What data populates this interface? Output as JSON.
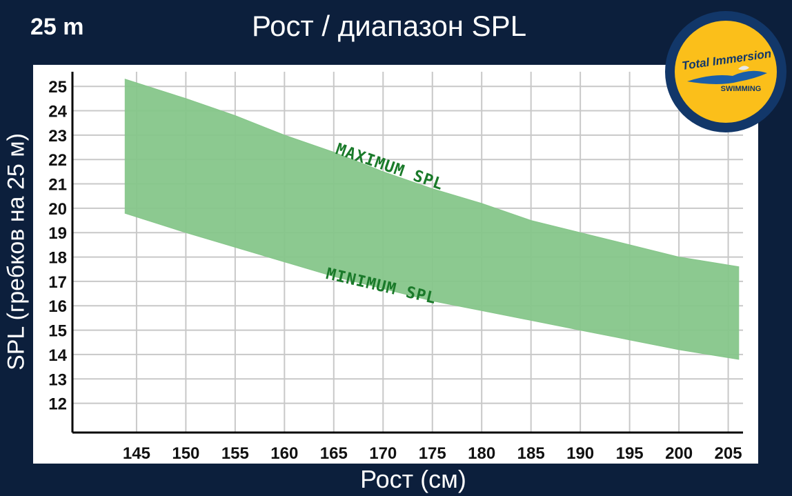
{
  "header": {
    "corner_label": "25 m",
    "title": "Рост / диапазон SPL"
  },
  "logo": {
    "line1": "Total Immersion",
    "line2": "SWIMMING",
    "ring_color": "#0d2a52",
    "fill_color": "#fbbf1a"
  },
  "chart_data": {
    "type": "area",
    "xlabel": "Рост (см)",
    "ylabel": "SPL (гребков на 25 м)",
    "xlim": [
      138.5,
      206.5
    ],
    "ylim": [
      10.8,
      25.6
    ],
    "x_ticks": [
      145,
      150,
      155,
      160,
      165,
      170,
      175,
      180,
      185,
      190,
      195,
      200,
      205
    ],
    "y_ticks": [
      12,
      13,
      14,
      15,
      16,
      17,
      18,
      19,
      20,
      21,
      22,
      23,
      24,
      25
    ],
    "grid": true,
    "band_color": "#86c68a",
    "annotation_color": "#1a7a2a",
    "series": [
      {
        "name": "MAXIMUM SPL",
        "x": [
          143.8,
          150,
          155,
          160,
          165,
          170,
          175,
          180,
          185,
          190,
          195,
          200,
          206.1
        ],
        "values": [
          25.3,
          24.5,
          23.8,
          23.0,
          22.3,
          21.5,
          20.8,
          20.2,
          19.5,
          19.0,
          18.5,
          18.0,
          17.6
        ]
      },
      {
        "name": "MINIMUM SPL",
        "x": [
          143.8,
          150,
          155,
          160,
          165,
          170,
          175,
          180,
          185,
          190,
          195,
          200,
          206.1
        ],
        "values": [
          19.8,
          19.0,
          18.4,
          17.8,
          17.2,
          16.7,
          16.2,
          15.8,
          15.4,
          15.0,
          14.6,
          14.2,
          13.8
        ]
      }
    ],
    "annotations": [
      {
        "text": "MAXIMUM SPL",
        "x": 170.5,
        "y": 21.5,
        "angle": 19
      },
      {
        "text": "MINIMUM SPL",
        "x": 169.7,
        "y": 16.6,
        "angle": 13
      }
    ]
  }
}
